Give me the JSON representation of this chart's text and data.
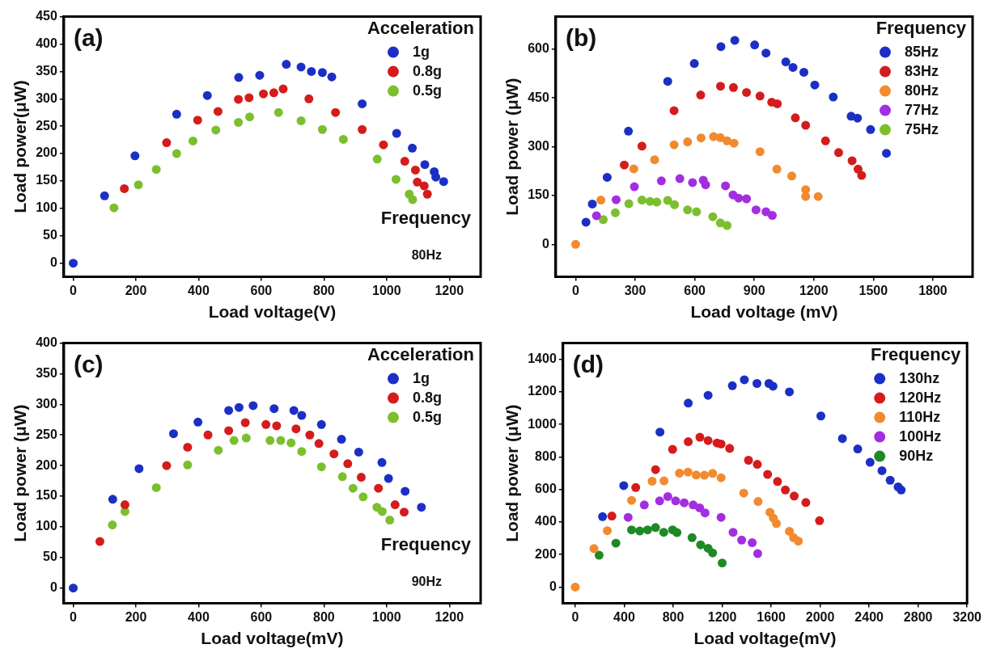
{
  "chart_data": [
    {
      "type": "scatter",
      "xlabel": "Load voltage(V)",
      "ylabel": "Load power(μW)",
      "legend_title": "Acceleration",
      "annotations": [
        "(a)",
        "Frequency",
        "80Hz"
      ],
      "xlim": [
        -30,
        1300
      ],
      "ylim": [
        -25,
        450
      ],
      "xticks": [
        0,
        200,
        400,
        600,
        800,
        1000,
        1200
      ],
      "yticks": [
        0,
        50,
        100,
        150,
        200,
        250,
        300,
        350,
        400,
        450
      ],
      "grid": false,
      "legend": "top right",
      "marker": "circle",
      "series": [
        {
          "name": "1g",
          "color": "#1c2fc4",
          "x": [
            0,
            100,
            197,
            330,
            428,
            528,
            595,
            680,
            727,
            760,
            795,
            825,
            922,
            1032,
            1082,
            1122,
            1152,
            1157,
            1182
          ],
          "values": [
            0,
            123,
            196,
            272,
            306,
            339,
            343,
            363,
            358,
            350,
            348,
            340,
            291,
            237,
            210,
            180,
            167,
            157,
            149
          ]
        },
        {
          "name": "0.8g",
          "color": "#d41c1c",
          "x": [
            163,
            298,
            397,
            462,
            527,
            561,
            607,
            640,
            670,
            752,
            837,
            922,
            990,
            1058,
            1092,
            1098,
            1120,
            1130
          ],
          "values": [
            136,
            220,
            261,
            277,
            299,
            302,
            309,
            311,
            318,
            300,
            275,
            244,
            216,
            186,
            170,
            148,
            141,
            126
          ]
        },
        {
          "name": "0.5g",
          "color": "#7cbf2e",
          "x": [
            130,
            208,
            265,
            330,
            382,
            455,
            527,
            563,
            655,
            727,
            795,
            862,
            970,
            1030,
            1072,
            1083
          ],
          "values": [
            101,
            143,
            171,
            200,
            223,
            243,
            257,
            267,
            275,
            260,
            244,
            226,
            190,
            153,
            126,
            116
          ]
        }
      ]
    },
    {
      "type": "scatter",
      "xlabel": "Load voltage (mV)",
      "ylabel": "Load power (μW)",
      "legend_title": "Frequency",
      "annotations": [
        "(b)"
      ],
      "xlim": [
        -100,
        2000
      ],
      "ylim": [
        -100,
        700
      ],
      "xticks": [
        0,
        300,
        600,
        900,
        1200,
        1500,
        1800
      ],
      "yticks": [
        0,
        150,
        300,
        450,
        600
      ],
      "grid": false,
      "legend": "top right",
      "marker": "circle",
      "series": [
        {
          "name": "85Hz",
          "color": "#1c2fc4",
          "x": [
            52,
            84,
            159,
            266,
            464,
            598,
            732,
            802,
            902,
            959,
            1059,
            1095,
            1150,
            1205,
            1298,
            1388,
            1420,
            1486,
            1566
          ],
          "values": [
            68,
            124,
            206,
            348,
            501,
            556,
            608,
            627,
            613,
            588,
            561,
            544,
            529,
            490,
            453,
            394,
            388,
            353,
            280
          ]
        },
        {
          "name": "83Hz",
          "color": "#d41c1c",
          "x": [
            245,
            334,
            496,
            630,
            730,
            795,
            861,
            929,
            988,
            1016,
            1107,
            1159,
            1259,
            1325,
            1393,
            1423,
            1441
          ],
          "values": [
            244,
            302,
            411,
            459,
            486,
            482,
            467,
            456,
            437,
            432,
            389,
            366,
            318,
            282,
            257,
            231,
            212
          ]
        },
        {
          "name": "80Hz",
          "color": "#f28a2e",
          "x": [
            0,
            127,
            293,
            398,
            496,
            564,
            632,
            695,
            729,
            763,
            798,
            929,
            1014,
            1089,
            1159,
            1159,
            1222
          ],
          "values": [
            0,
            136,
            232,
            260,
            306,
            315,
            327,
            331,
            328,
            318,
            311,
            285,
            231,
            210,
            168,
            147,
            147
          ]
        },
        {
          "name": "77Hz",
          "color": "#a22ee0",
          "x": [
            105,
            204,
            296,
            432,
            525,
            589,
            643,
            655,
            755,
            793,
            821,
            861,
            909,
            959,
            991
          ],
          "values": [
            88,
            137,
            177,
            195,
            202,
            190,
            197,
            183,
            180,
            152,
            142,
            140,
            106,
            100,
            89
          ]
        },
        {
          "name": "75Hz",
          "color": "#7cbf2e",
          "x": [
            139,
            200,
            268,
            334,
            375,
            409,
            464,
            498,
            564,
            609,
            691,
            729,
            763
          ],
          "values": [
            76,
            97,
            125,
            136,
            132,
            130,
            135,
            122,
            106,
            100,
            85,
            66,
            58
          ]
        }
      ]
    },
    {
      "type": "scatter",
      "xlabel": "Load voltage(mV)",
      "ylabel": "Load power (μW)",
      "legend_title": "Acceleration",
      "annotations": [
        "(c)",
        "Frequency",
        "90Hz"
      ],
      "xlim": [
        -30,
        1300
      ],
      "ylim": [
        -25,
        400
      ],
      "xticks": [
        0,
        200,
        400,
        600,
        800,
        1000,
        1200
      ],
      "yticks": [
        0,
        50,
        100,
        150,
        200,
        250,
        300,
        350,
        400
      ],
      "grid": false,
      "legend": "top right",
      "marker": "circle",
      "series": [
        {
          "name": "1g",
          "color": "#1c2fc4",
          "x": [
            0,
            126,
            210,
            320,
            398,
            496,
            529,
            574,
            641,
            704,
            729,
            792,
            856,
            911,
            985,
            1006,
            1059,
            1111
          ],
          "values": [
            0,
            145,
            195,
            252,
            271,
            290,
            295,
            298,
            293,
            290,
            282,
            267,
            243,
            222,
            205,
            179,
            158,
            132
          ]
        },
        {
          "name": "0.8g",
          "color": "#d41c1c",
          "x": [
            85,
            165,
            298,
            365,
            430,
            496,
            549,
            615,
            649,
            711,
            755,
            784,
            832,
            876,
            919,
            974,
            1027,
            1056
          ],
          "values": [
            76,
            136,
            200,
            230,
            250,
            257,
            270,
            267,
            265,
            260,
            250,
            236,
            219,
            203,
            181,
            163,
            136,
            124
          ]
        },
        {
          "name": "0.5g",
          "color": "#7cbf2e",
          "x": [
            125,
            165,
            265,
            365,
            463,
            513,
            552,
            628,
            662,
            695,
            729,
            792,
            859,
            893,
            925,
            969,
            986,
            1010
          ],
          "values": [
            103,
            125,
            164,
            201,
            225,
            241,
            245,
            241,
            241,
            237,
            223,
            198,
            182,
            163,
            149,
            132,
            125,
            111
          ]
        }
      ]
    },
    {
      "type": "scatter",
      "xlabel": "Load voltage(mV)",
      "ylabel": "Load power (μW)",
      "legend_title": "Frequency",
      "annotations": [
        "(d)"
      ],
      "xlim": [
        -100,
        3200
      ],
      "ylim": [
        -100,
        1500
      ],
      "xticks": [
        0,
        400,
        800,
        1200,
        1600,
        2000,
        2400,
        2800,
        3200
      ],
      "yticks": [
        0,
        200,
        400,
        600,
        800,
        1000,
        1200,
        1400
      ],
      "grid": false,
      "legend": "top right",
      "marker": "circle",
      "series": [
        {
          "name": "130hz",
          "color": "#1c2fc4",
          "x": [
            223,
            396,
            692,
            923,
            1085,
            1283,
            1381,
            1484,
            1582,
            1615,
            1749,
            2006,
            2182,
            2307,
            2408,
            2505,
            2572,
            2637,
            2662
          ],
          "values": [
            433,
            624,
            953,
            1131,
            1179,
            1238,
            1275,
            1252,
            1252,
            1235,
            1200,
            1052,
            913,
            849,
            767,
            716,
            657,
            616,
            597
          ]
        },
        {
          "name": "120Hz",
          "color": "#d41c1c",
          "x": [
            299,
            494,
            656,
            795,
            923,
            1018,
            1085,
            1158,
            1191,
            1261,
            1415,
            1487,
            1571,
            1652,
            1716,
            1788,
            1883,
            1995
          ],
          "values": [
            437,
            612,
            722,
            847,
            894,
            921,
            901,
            886,
            880,
            853,
            780,
            755,
            693,
            649,
            597,
            560,
            520,
            408
          ]
        },
        {
          "name": "110Hz",
          "color": "#f28a2e",
          "x": [
            0,
            153,
            262,
            460,
            628,
            725,
            851,
            921,
            988,
            1055,
            1122,
            1191,
            1376,
            1493,
            1590,
            1618,
            1643,
            1749,
            1783,
            1822
          ],
          "values": [
            0,
            237,
            347,
            533,
            651,
            653,
            701,
            707,
            689,
            688,
            699,
            672,
            578,
            526,
            460,
            424,
            391,
            343,
            304,
            283
          ]
        },
        {
          "name": "100Hz",
          "color": "#a22ee0",
          "x": [
            432,
            564,
            689,
            756,
            820,
            890,
            963,
            1016,
            1060,
            1191,
            1289,
            1359,
            1445,
            1490
          ],
          "values": [
            429,
            505,
            530,
            557,
            530,
            518,
            505,
            487,
            456,
            429,
            337,
            289,
            273,
            206
          ]
        },
        {
          "name": "90Hz",
          "color": "#1e8a26",
          "x": [
            195,
            332,
            460,
            527,
            591,
            656,
            723,
            795,
            831,
            954,
            1024,
            1085,
            1122,
            1200
          ],
          "values": [
            196,
            270,
            352,
            345,
            352,
            366,
            337,
            352,
            335,
            304,
            260,
            239,
            210,
            148
          ]
        }
      ]
    }
  ]
}
